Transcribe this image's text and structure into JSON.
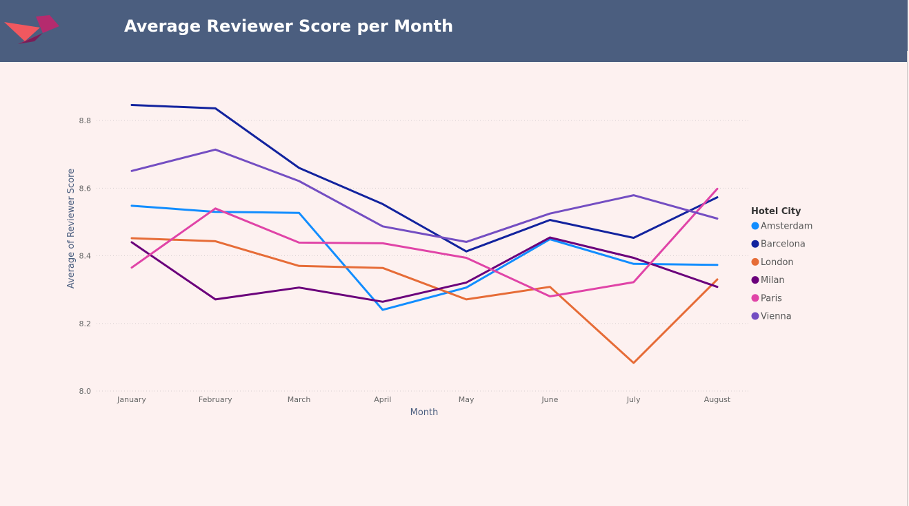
{
  "header": {
    "title": "Average Reviewer Score per Month",
    "background": "#4B5E7F"
  },
  "logo": {
    "icon": "bird-logo-icon",
    "colors": [
      "#F1585F",
      "#B52B6E",
      "#7A1D58"
    ]
  },
  "chart_data": {
    "type": "line",
    "title": "",
    "xlabel": "Month",
    "ylabel": "Average of Reviewer Score",
    "categories": [
      "January",
      "February",
      "March",
      "April",
      "May",
      "June",
      "July",
      "August"
    ],
    "ylim": [
      8.0,
      8.9
    ],
    "yticks": [
      8.0,
      8.2,
      8.4,
      8.6,
      8.8
    ],
    "ytick_labels": [
      "8.0",
      "8.2",
      "8.4",
      "8.6",
      "8.8"
    ],
    "grid": true,
    "legend": {
      "title": "Hotel City",
      "position": "right"
    },
    "series": [
      {
        "name": "Amsterdam",
        "color": "#118DFF",
        "values": [
          8.548,
          8.53,
          8.527,
          8.24,
          8.306,
          8.449,
          8.376,
          8.373
        ]
      },
      {
        "name": "Barcelona",
        "color": "#12239E",
        "values": [
          8.846,
          8.836,
          8.66,
          8.553,
          8.413,
          8.506,
          8.453,
          8.573
        ]
      },
      {
        "name": "London",
        "color": "#E66C37",
        "values": [
          8.452,
          8.443,
          8.37,
          8.364,
          8.271,
          8.308,
          8.083,
          8.33
        ]
      },
      {
        "name": "Milan",
        "color": "#6B007B",
        "values": [
          8.44,
          8.271,
          8.306,
          8.264,
          8.321,
          8.454,
          8.394,
          8.308
        ]
      },
      {
        "name": "Paris",
        "color": "#E044A7",
        "values": [
          8.365,
          8.54,
          8.439,
          8.437,
          8.394,
          8.28,
          8.322,
          8.598
        ]
      },
      {
        "name": "Vienna",
        "color": "#744EC2",
        "values": [
          8.651,
          8.714,
          8.621,
          8.487,
          8.441,
          8.525,
          8.579,
          8.51
        ]
      }
    ]
  }
}
